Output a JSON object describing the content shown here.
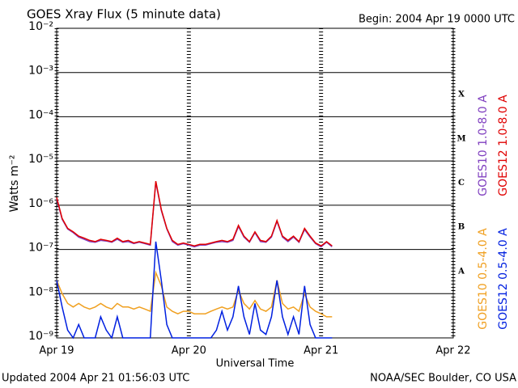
{
  "chart_data": {
    "type": "line",
    "title": "GOES Xray Flux (5 minute data)",
    "subtitle": "Begin:  2004 Apr 19 0000 UTC",
    "x_label": "Universal Time",
    "y_label": "Watts m⁻²",
    "footer_left": "Updated 2004 Apr 21 01:56:03 UTC",
    "footer_right": "NOAA/SEC Boulder, CO USA",
    "log_scale": true,
    "grid": true,
    "xlim": [
      0,
      72
    ],
    "xticks": [
      {
        "value": 0,
        "label": "Apr 19"
      },
      {
        "value": 24,
        "label": "Apr 20"
      },
      {
        "value": 48,
        "label": "Apr 21"
      },
      {
        "value": 72,
        "label": "Apr 22"
      }
    ],
    "ylim": [
      1e-09,
      0.01
    ],
    "yticks": [
      {
        "value": 1e-09,
        "label": "10⁻⁹"
      },
      {
        "value": 1e-08,
        "label": "10⁻⁸"
      },
      {
        "value": 1e-07,
        "label": "10⁻⁷"
      },
      {
        "value": 1e-06,
        "label": "10⁻⁶"
      },
      {
        "value": 1e-05,
        "label": "10⁻⁵"
      },
      {
        "value": 0.0001,
        "label": "10⁻⁴"
      },
      {
        "value": 0.001,
        "label": "10⁻³"
      },
      {
        "value": 0.01,
        "label": "10⁻²"
      }
    ],
    "flare_classes": [
      {
        "label": "A",
        "value": 1e-08
      },
      {
        "label": "B",
        "value": 1e-07
      },
      {
        "label": "C",
        "value": 1e-06
      },
      {
        "label": "M",
        "value": 1e-05
      },
      {
        "label": "X",
        "value": 0.0001
      }
    ],
    "x": [
      0,
      1,
      2,
      3,
      4,
      5,
      6,
      7,
      8,
      9,
      10,
      11,
      12,
      13,
      14,
      15,
      16,
      17,
      18,
      19,
      20,
      21,
      22,
      23,
      24,
      25,
      26,
      27,
      28,
      29,
      30,
      31,
      32,
      33,
      34,
      35,
      36,
      37,
      38,
      39,
      40,
      41,
      42,
      43,
      44,
      45,
      46,
      47,
      48,
      49,
      50
    ],
    "series": [
      {
        "name": "GOES10 1.0-8.0 A",
        "color": "#8040c0",
        "values": [
          1.4e-06,
          4.8e-07,
          2.9e-07,
          2.4e-07,
          1.9e-07,
          1.7e-07,
          1.5e-07,
          1.45e-07,
          1.6e-07,
          1.55e-07,
          1.45e-07,
          1.7e-07,
          1.45e-07,
          1.5e-07,
          1.35e-07,
          1.45e-07,
          1.35e-07,
          1.25e-07,
          3.3e-06,
          7.6e-07,
          2.9e-07,
          1.5e-07,
          1.25e-07,
          1.35e-07,
          1.25e-07,
          1.15e-07,
          1.25e-07,
          1.25e-07,
          1.35e-07,
          1.45e-07,
          1.5e-07,
          1.45e-07,
          1.6e-07,
          3.3e-07,
          1.9e-07,
          1.45e-07,
          2.4e-07,
          1.5e-07,
          1.45e-07,
          1.9e-07,
          4.3e-07,
          1.9e-07,
          1.5e-07,
          1.9e-07,
          1.45e-07,
          2.8e-07,
          1.9e-07,
          1.35e-07,
          1.15e-07,
          1.45e-07,
          1.15e-07
        ]
      },
      {
        "name": "GOES12 1.0-8.0 A",
        "color": "#e00000",
        "values": [
          1.5e-06,
          5e-07,
          3e-07,
          2.5e-07,
          2e-07,
          1.8e-07,
          1.6e-07,
          1.5e-07,
          1.7e-07,
          1.6e-07,
          1.5e-07,
          1.8e-07,
          1.5e-07,
          1.6e-07,
          1.4e-07,
          1.5e-07,
          1.4e-07,
          1.3e-07,
          3.5e-06,
          8e-07,
          3e-07,
          1.6e-07,
          1.3e-07,
          1.4e-07,
          1.3e-07,
          1.2e-07,
          1.3e-07,
          1.3e-07,
          1.4e-07,
          1.5e-07,
          1.6e-07,
          1.5e-07,
          1.7e-07,
          3.5e-07,
          2e-07,
          1.5e-07,
          2.5e-07,
          1.6e-07,
          1.5e-07,
          2e-07,
          4.5e-07,
          2e-07,
          1.6e-07,
          2e-07,
          1.5e-07,
          3e-07,
          2e-07,
          1.4e-07,
          1.2e-07,
          1.5e-07,
          1.2e-07
        ]
      },
      {
        "name": "GOES10 0.5-4.0 A",
        "color": "#f0a020",
        "values": [
          2e-08,
          1e-08,
          6e-09,
          5e-09,
          6e-09,
          5e-09,
          4.5e-09,
          5e-09,
          6e-09,
          5e-09,
          4.5e-09,
          6e-09,
          5e-09,
          5e-09,
          4.5e-09,
          5e-09,
          4.5e-09,
          4e-09,
          3e-08,
          1.5e-08,
          5e-09,
          4e-09,
          3.5e-09,
          4e-09,
          4e-09,
          3.5e-09,
          3.5e-09,
          3.5e-09,
          4e-09,
          4.5e-09,
          5e-09,
          4.5e-09,
          5e-09,
          1.2e-08,
          6e-09,
          4.5e-09,
          7e-09,
          4.5e-09,
          4e-09,
          5e-09,
          2e-08,
          6e-09,
          4.5e-09,
          5e-09,
          4e-09,
          1e-08,
          5e-09,
          4e-09,
          3.5e-09,
          3e-09,
          3e-09
        ]
      },
      {
        "name": "GOES12 0.5-4.0 A",
        "color": "#0020e0",
        "values": [
          2e-08,
          5e-09,
          1.5e-09,
          1e-09,
          2e-09,
          1e-09,
          1e-09,
          1e-09,
          3e-09,
          1.5e-09,
          1e-09,
          3e-09,
          1e-09,
          1e-09,
          1e-09,
          1e-09,
          1e-09,
          1e-09,
          1.5e-07,
          2e-08,
          2e-09,
          1e-09,
          1e-09,
          1e-09,
          1e-09,
          1e-09,
          1e-09,
          1e-09,
          1e-09,
          1.5e-09,
          4e-09,
          1.5e-09,
          3e-09,
          1.5e-08,
          3e-09,
          1.2e-09,
          6e-09,
          1.5e-09,
          1.2e-09,
          3e-09,
          2e-08,
          3e-09,
          1.2e-09,
          3e-09,
          1.2e-09,
          1.5e-08,
          2e-09,
          1e-09,
          1e-09,
          1e-09,
          1e-09
        ]
      }
    ]
  }
}
